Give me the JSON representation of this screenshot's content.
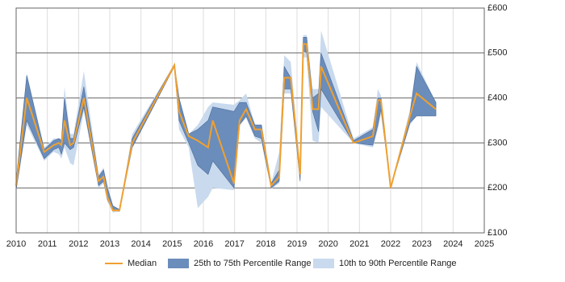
{
  "chart_data": {
    "type": "line",
    "x": [
      2010.0,
      2010.34,
      2010.9,
      2011.2,
      2011.37,
      2011.45,
      2011.55,
      2011.73,
      2011.84,
      2012.17,
      2012.64,
      2012.8,
      2012.92,
      2013.1,
      2013.31,
      2013.72,
      2015.07,
      2015.22,
      2015.53,
      2015.82,
      2016.15,
      2016.3,
      2016.98,
      2017.16,
      2017.37,
      2017.65,
      2017.86,
      2018.17,
      2018.43,
      2018.59,
      2018.8,
      2019.1,
      2019.2,
      2019.31,
      2019.5,
      2019.69,
      2019.77,
      2020.81,
      2021.43,
      2021.59,
      2021.69,
      2022.0,
      2022.62,
      2022.83,
      2023.45
    ],
    "series": [
      {
        "name": "10th to 90th Percentile Range",
        "color": "#c9daee",
        "low": [
          190,
          340,
          260,
          280,
          275,
          265,
          290,
          255,
          250,
          370,
          200,
          210,
          170,
          145,
          148,
          290,
          470,
          330,
          290,
          155,
          180,
          200,
          195,
          340,
          355,
          310,
          300,
          198,
          210,
          410,
          410,
          210,
          490,
          490,
          305,
          300,
          380,
          300,
          290,
          330,
          365,
          200,
          340,
          360,
          360
        ],
        "high": [
          220,
          455,
          290,
          310,
          310,
          310,
          425,
          320,
          320,
          460,
          230,
          245,
          210,
          160,
          152,
          320,
          475,
          400,
          320,
          340,
          380,
          390,
          385,
          395,
          410,
          340,
          340,
          210,
          280,
          495,
          480,
          240,
          540,
          540,
          420,
          420,
          550,
          310,
          335,
          420,
          405,
          200,
          375,
          480,
          390
        ]
      },
      {
        "name": "25th to 75th Percentile Range",
        "color": "#6a8dbb",
        "low": [
          195,
          350,
          265,
          285,
          290,
          275,
          300,
          285,
          290,
          380,
          205,
          215,
          175,
          150,
          148,
          290,
          470,
          350,
          300,
          250,
          230,
          260,
          200,
          340,
          360,
          315,
          310,
          200,
          215,
          420,
          420,
          215,
          505,
          500,
          370,
          325,
          420,
          300,
          295,
          340,
          375,
          200,
          345,
          360,
          360
        ],
        "high": [
          215,
          450,
          285,
          305,
          310,
          305,
          400,
          310,
          310,
          425,
          225,
          240,
          200,
          160,
          152,
          310,
          475,
          400,
          320,
          330,
          350,
          380,
          370,
          390,
          390,
          340,
          340,
          210,
          240,
          470,
          445,
          235,
          535,
          535,
          400,
          410,
          500,
          305,
          330,
          400,
          400,
          200,
          365,
          470,
          390
        ]
      },
      {
        "name": "Median",
        "color": "#f0a030",
        "values": [
          205,
          400,
          280,
          295,
          300,
          295,
          350,
          295,
          300,
          400,
          215,
          225,
          180,
          150,
          150,
          300,
          473,
          370,
          315,
          305,
          290,
          350,
          210,
          350,
          375,
          330,
          330,
          205,
          225,
          445,
          445,
          230,
          520,
          520,
          375,
          375,
          470,
          300,
          315,
          395,
          395,
          200,
          360,
          410,
          375
        ]
      }
    ],
    "xlim": [
      2010,
      2025
    ],
    "xticks": [
      2010,
      2011,
      2012,
      2013,
      2014,
      2015,
      2016,
      2017,
      2018,
      2019,
      2020,
      2021,
      2022,
      2023,
      2024,
      2025
    ],
    "ylim": [
      100,
      600
    ],
    "yticks": [
      {
        "value": 100,
        "label": "£100"
      },
      {
        "value": 200,
        "label": "£200"
      },
      {
        "value": 300,
        "label": "£300"
      },
      {
        "value": 400,
        "label": "£400"
      },
      {
        "value": 500,
        "label": "£500"
      },
      {
        "value": 600,
        "label": "£600"
      }
    ],
    "grid": true,
    "legend": "bottom"
  }
}
